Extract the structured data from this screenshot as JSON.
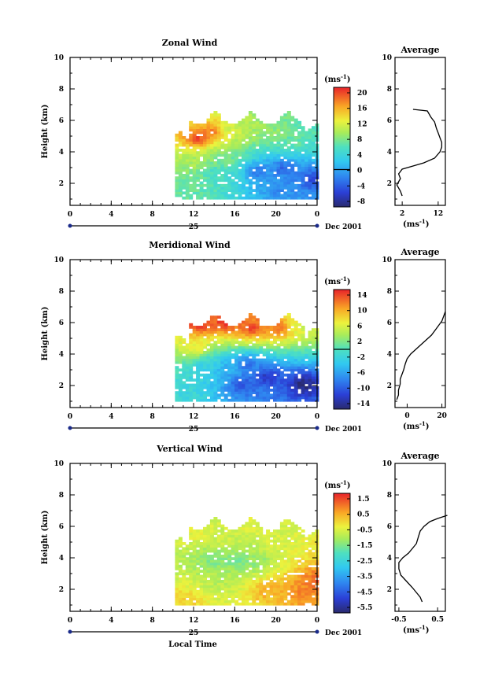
{
  "figure": {
    "xlabel": "Local Time",
    "date_label": "Dec 2001",
    "day_label": "25",
    "height_label": "Height (km)",
    "unit_label": "(ms",
    "unit_exp": "-1",
    "avg_unit_label": "(ms",
    "avg_unit_exp": "-1"
  },
  "chart_data": [
    {
      "type": "heatmap",
      "title": "Zonal Wind",
      "xlabel": "",
      "ylabel": "Height (km)",
      "x_ticks": [
        "0",
        "4",
        "8",
        "12",
        "16",
        "20",
        "0"
      ],
      "y_ticks": [
        "2",
        "4",
        "6",
        "8",
        "10"
      ],
      "xlim": [
        0,
        24
      ],
      "ylim": [
        0.6,
        10
      ],
      "colorbar_ticks": [
        "20",
        "16",
        "12",
        "8",
        "4",
        "0",
        "-4",
        "-8"
      ],
      "colorbar_range": [
        -10,
        22
      ],
      "data_extent": {
        "x": [
          10.2,
          24
        ],
        "y": [
          1.0,
          6.6
        ]
      },
      "blobs": [
        {
          "x": 12.2,
          "y": 4.8,
          "value": 21
        },
        {
          "x": 13.5,
          "y": 5.2,
          "value": 19
        },
        {
          "x": 15.5,
          "y": 5.3,
          "value": 12
        },
        {
          "x": 18.0,
          "y": 5.6,
          "value": 10
        },
        {
          "x": 20.0,
          "y": 5.2,
          "value": 9
        },
        {
          "x": 21.5,
          "y": 4.6,
          "value": 7
        },
        {
          "x": 23.0,
          "y": 5.8,
          "value": 6
        },
        {
          "x": 12.0,
          "y": 3.3,
          "value": 10
        },
        {
          "x": 14.5,
          "y": 3.5,
          "value": 8
        },
        {
          "x": 14.0,
          "y": 2.6,
          "value": 5
        },
        {
          "x": 18.0,
          "y": 2.7,
          "value": -3
        },
        {
          "x": 20.5,
          "y": 2.9,
          "value": -4
        },
        {
          "x": 20.0,
          "y": 1.6,
          "value": -2
        },
        {
          "x": 23.5,
          "y": 2.2,
          "value": -6
        },
        {
          "x": 11.5,
          "y": 1.9,
          "value": 7
        }
      ],
      "average": {
        "title": "Average",
        "x_ticks": [
          "2",
          "12"
        ],
        "xlim": [
          0,
          14
        ],
        "x": [
          5,
          9,
          10,
          11,
          11.5,
          12,
          12.5,
          13,
          13,
          12.5,
          11,
          8,
          5,
          2,
          1,
          1.5,
          1,
          0.5,
          1.5,
          2
        ],
        "y": [
          6.7,
          6.6,
          6.2,
          5.9,
          5.5,
          5.2,
          4.9,
          4.6,
          4.3,
          4.0,
          3.6,
          3.3,
          3.1,
          2.9,
          2.6,
          2.3,
          2.1,
          1.9,
          1.5,
          1.2
        ]
      }
    },
    {
      "type": "heatmap",
      "title": "Meridional Wind",
      "xlabel": "",
      "ylabel": "Height (km)",
      "x_ticks": [
        "0",
        "4",
        "8",
        "12",
        "16",
        "20",
        "0"
      ],
      "y_ticks": [
        "2",
        "4",
        "6",
        "8",
        "10"
      ],
      "xlim": [
        0,
        24
      ],
      "ylim": [
        0.6,
        10
      ],
      "colorbar_ticks": [
        "14",
        "10",
        "6",
        "2",
        "-2",
        "-6",
        "-10",
        "-14"
      ],
      "colorbar_range": [
        -17,
        17
      ],
      "data_extent": {
        "x": [
          10.2,
          24
        ],
        "y": [
          1.0,
          6.6
        ]
      },
      "blobs": [
        {
          "x": 12.5,
          "y": 5.8,
          "value": 17
        },
        {
          "x": 15.0,
          "y": 6.0,
          "value": 17
        },
        {
          "x": 17.5,
          "y": 5.6,
          "value": 16
        },
        {
          "x": 20.0,
          "y": 5.6,
          "value": 14
        },
        {
          "x": 22.5,
          "y": 5.8,
          "value": 6
        },
        {
          "x": 12.0,
          "y": 4.3,
          "value": 8
        },
        {
          "x": 13.0,
          "y": 3.2,
          "value": -3
        },
        {
          "x": 15.0,
          "y": 3.0,
          "value": -6
        },
        {
          "x": 17.0,
          "y": 3.3,
          "value": -10
        },
        {
          "x": 16.5,
          "y": 2.0,
          "value": -12
        },
        {
          "x": 19.0,
          "y": 2.5,
          "value": -14
        },
        {
          "x": 22.5,
          "y": 2.0,
          "value": -17
        },
        {
          "x": 11.5,
          "y": 1.5,
          "value": -2
        }
      ],
      "average": {
        "title": "Average",
        "x_ticks": [
          "0",
          "20"
        ],
        "xlim": [
          -7,
          22
        ],
        "x": [
          22,
          21,
          20,
          18,
          16,
          14,
          11,
          8,
          5,
          2,
          0,
          -1,
          -2,
          -3,
          -4,
          -4,
          -5,
          -5,
          -6
        ],
        "y": [
          6.7,
          6.4,
          6.1,
          5.8,
          5.5,
          5.2,
          4.9,
          4.6,
          4.3,
          4.0,
          3.7,
          3.4,
          3.0,
          2.7,
          2.4,
          2.1,
          1.7,
          1.4,
          1.1
        ]
      }
    },
    {
      "type": "heatmap",
      "title": "Vertical Wind",
      "xlabel": "Local Time",
      "ylabel": "Height (km)",
      "x_ticks": [
        "0",
        "4",
        "8",
        "12",
        "16",
        "20",
        "0"
      ],
      "y_ticks": [
        "2",
        "4",
        "6",
        "8",
        "10"
      ],
      "xlim": [
        0,
        24
      ],
      "ylim": [
        0.6,
        10
      ],
      "colorbar_ticks": [
        "1.5",
        "0.5",
        "-0.5",
        "-1.5",
        "-2.5",
        "-3.5",
        "-4.5",
        "-5.5"
      ],
      "colorbar_range": [
        -6.2,
        2.2
      ],
      "data_extent": {
        "x": [
          10.2,
          24
        ],
        "y": [
          1.0,
          6.6
        ]
      },
      "blobs": [
        {
          "x": 12.0,
          "y": 5.5,
          "value": -0.2
        },
        {
          "x": 15.0,
          "y": 5.2,
          "value": -0.5
        },
        {
          "x": 17.0,
          "y": 5.8,
          "value": -0.3
        },
        {
          "x": 19.5,
          "y": 5.0,
          "value": -0.4
        },
        {
          "x": 13.5,
          "y": 3.8,
          "value": -1.5
        },
        {
          "x": 16.0,
          "y": 3.8,
          "value": -1.7
        },
        {
          "x": 18.0,
          "y": 3.7,
          "value": -1.3
        },
        {
          "x": 14.0,
          "y": 2.4,
          "value": -0.8
        },
        {
          "x": 19.0,
          "y": 1.9,
          "value": 0.8
        },
        {
          "x": 22.5,
          "y": 1.8,
          "value": 1.2
        },
        {
          "x": 23.7,
          "y": 2.5,
          "value": 1.5
        },
        {
          "x": 11.3,
          "y": 1.3,
          "value": 0.3
        }
      ],
      "average": {
        "title": "Average",
        "x_ticks": [
          "-0.5",
          "0.5"
        ],
        "xlim": [
          -0.6,
          0.7
        ],
        "x": [
          0.75,
          0.5,
          0.3,
          0.15,
          0.05,
          0.0,
          -0.05,
          -0.15,
          -0.25,
          -0.4,
          -0.5,
          -0.5,
          -0.45,
          -0.3,
          -0.15,
          -0.05,
          0.05,
          0.1
        ],
        "y": [
          6.7,
          6.5,
          6.3,
          6.0,
          5.7,
          5.3,
          4.9,
          4.6,
          4.3,
          4.0,
          3.7,
          3.3,
          2.9,
          2.5,
          2.1,
          1.8,
          1.5,
          1.2
        ]
      }
    }
  ]
}
